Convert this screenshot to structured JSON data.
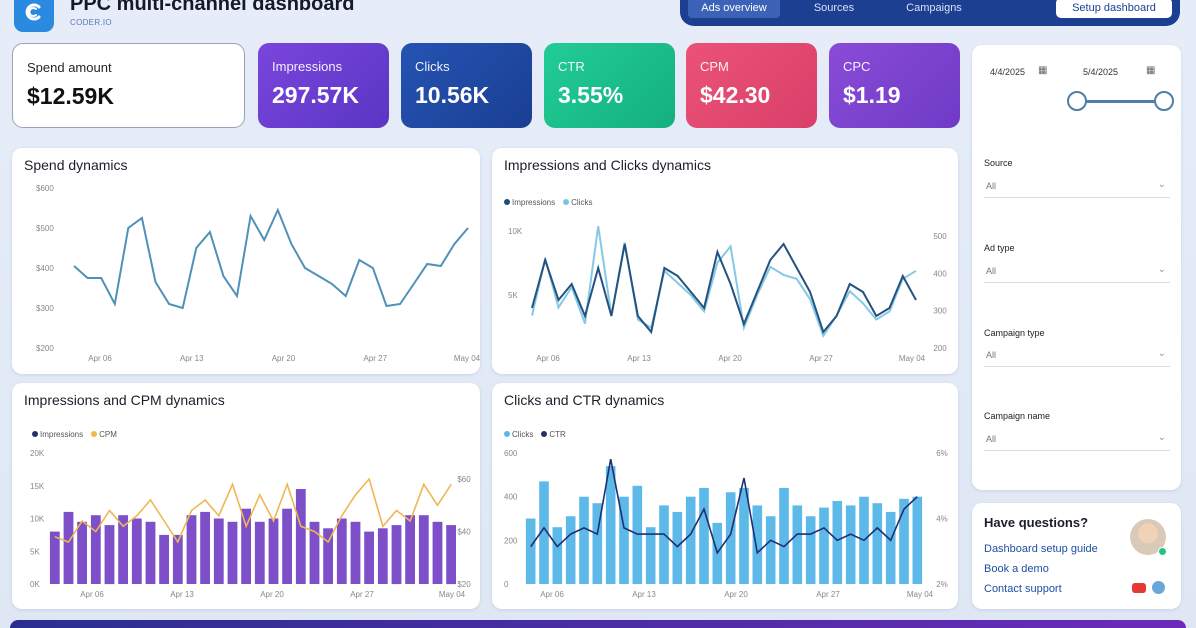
{
  "header": {
    "title": "PPC multi-channel dashboard",
    "subtitle": "CODER.IO",
    "nav": [
      "Ads overview",
      "Sources",
      "Campaigns"
    ],
    "setup_button": "Setup dashboard"
  },
  "kpis": [
    {
      "label": "Spend amount",
      "value": "$12.59K"
    },
    {
      "label": "Impressions",
      "value": "297.57K"
    },
    {
      "label": "Clicks",
      "value": "10.56K"
    },
    {
      "label": "CTR",
      "value": "3.55%"
    },
    {
      "label": "CPM",
      "value": "$42.30"
    },
    {
      "label": "CPC",
      "value": "$1.19"
    }
  ],
  "colors": {
    "impressions": "#6b3fd4",
    "clicks": "#1f4aa6",
    "ctr": "#18c48a",
    "cpm": "#e2466e",
    "cpc": "#7f43d0",
    "line": "#4f91b8"
  },
  "filters": {
    "date_from": "4/4/2025",
    "date_to": "5/4/2025",
    "fields": [
      {
        "label": "Source",
        "value": "All"
      },
      {
        "label": "Ad type",
        "value": "All"
      },
      {
        "label": "Campaign type",
        "value": "All"
      },
      {
        "label": "Campaign name",
        "value": "All"
      }
    ]
  },
  "help": {
    "title": "Have questions?",
    "links": [
      "Dashboard setup guide",
      "Book a demo",
      "Contact support"
    ]
  },
  "chart_data": [
    {
      "type": "line",
      "title": "Spend dynamics",
      "x_ticks": [
        "Apr 06",
        "Apr 13",
        "Apr 20",
        "Apr 27",
        "May 04"
      ],
      "y_ticks": [
        "$200",
        "$300",
        "$400",
        "$500",
        "$600"
      ],
      "ylim": [
        200,
        600
      ],
      "series": [
        {
          "values": [
            405,
            375,
            375,
            310,
            500,
            525,
            365,
            310,
            300,
            450,
            490,
            380,
            330,
            530,
            470,
            545,
            460,
            400,
            380,
            360,
            330,
            420,
            400,
            305,
            310,
            360,
            410,
            405,
            460,
            500
          ]
        }
      ]
    },
    {
      "type": "line",
      "title": "Impressions and Clicks dynamics",
      "x_ticks": [
        "Apr 06",
        "Apr 13",
        "Apr 20",
        "Apr 27",
        "May 04"
      ],
      "y_ticks_left": [
        "5K",
        "10K"
      ],
      "y_ticks_right": [
        "200",
        "300",
        "400",
        "500"
      ],
      "series": [
        {
          "name": "Impressions",
          "values": [
            8.5,
            11.5,
            9,
            10,
            8,
            11,
            8,
            12.5,
            8,
            7,
            11,
            10.5,
            9.5,
            8.5,
            12,
            10,
            7.5,
            9.5,
            11.5,
            12.5,
            11,
            9.5,
            7,
            8,
            10,
            9.5,
            8,
            8.5,
            10.5,
            9
          ]
        },
        {
          "name": "Clicks",
          "values": [
            300,
            440,
            320,
            370,
            280,
            520,
            300,
            480,
            290,
            270,
            410,
            380,
            350,
            310,
            430,
            470,
            270,
            350,
            420,
            400,
            390,
            340,
            250,
            300,
            360,
            330,
            290,
            310,
            390,
            410
          ]
        }
      ]
    },
    {
      "type": "bar",
      "title": "Impressions and CPM dynamics",
      "x_ticks": [
        "Apr 06",
        "Apr 13",
        "Apr 20",
        "Apr 27",
        "May 04"
      ],
      "y_ticks_left": [
        "0K",
        "5K",
        "10K",
        "15K",
        "20K"
      ],
      "y_ticks_right": [
        "$20",
        "$40",
        "$60"
      ],
      "series": [
        {
          "name": "Impressions",
          "values": [
            8,
            11,
            9.5,
            10.5,
            9,
            10.5,
            10,
            9.5,
            7.5,
            7.5,
            10.5,
            11,
            10,
            9.5,
            11.5,
            9.5,
            10,
            11.5,
            14.5,
            9.5,
            8.5,
            10,
            9.5,
            8,
            8.5,
            9,
            10.5,
            10.5,
            9.5,
            9
          ]
        },
        {
          "name": "CPM",
          "values": [
            38,
            36,
            44,
            40,
            48,
            42,
            46,
            52,
            44,
            36,
            48,
            52,
            46,
            58,
            42,
            54,
            44,
            58,
            42,
            40,
            36,
            46,
            54,
            60,
            42,
            48,
            44,
            58,
            50,
            58
          ]
        }
      ]
    },
    {
      "type": "bar",
      "title": "Clicks and CTR dynamics",
      "x_ticks": [
        "Apr 06",
        "Apr 13",
        "Apr 20",
        "Apr 27",
        "May 04"
      ],
      "y_ticks_left": [
        "0",
        "200",
        "400",
        "600"
      ],
      "y_ticks_right": [
        "2%",
        "4%",
        "6%"
      ],
      "series": [
        {
          "name": "Clicks",
          "values": [
            300,
            470,
            260,
            310,
            400,
            370,
            540,
            400,
            450,
            260,
            360,
            330,
            400,
            440,
            280,
            420,
            440,
            360,
            310,
            440,
            360,
            310,
            350,
            380,
            360,
            400,
            370,
            330,
            390,
            400
          ]
        },
        {
          "name": "CTR",
          "values": [
            3.2,
            3.8,
            3.2,
            3.6,
            3.8,
            3.6,
            6.0,
            3.8,
            3.6,
            3.6,
            3.6,
            3.2,
            3.6,
            4.4,
            3.0,
            3.6,
            5.4,
            3.0,
            3.4,
            3.2,
            3.6,
            3.6,
            3.8,
            3.4,
            3.6,
            3.4,
            3.8,
            3.4,
            4.4,
            4.8
          ]
        }
      ]
    }
  ]
}
